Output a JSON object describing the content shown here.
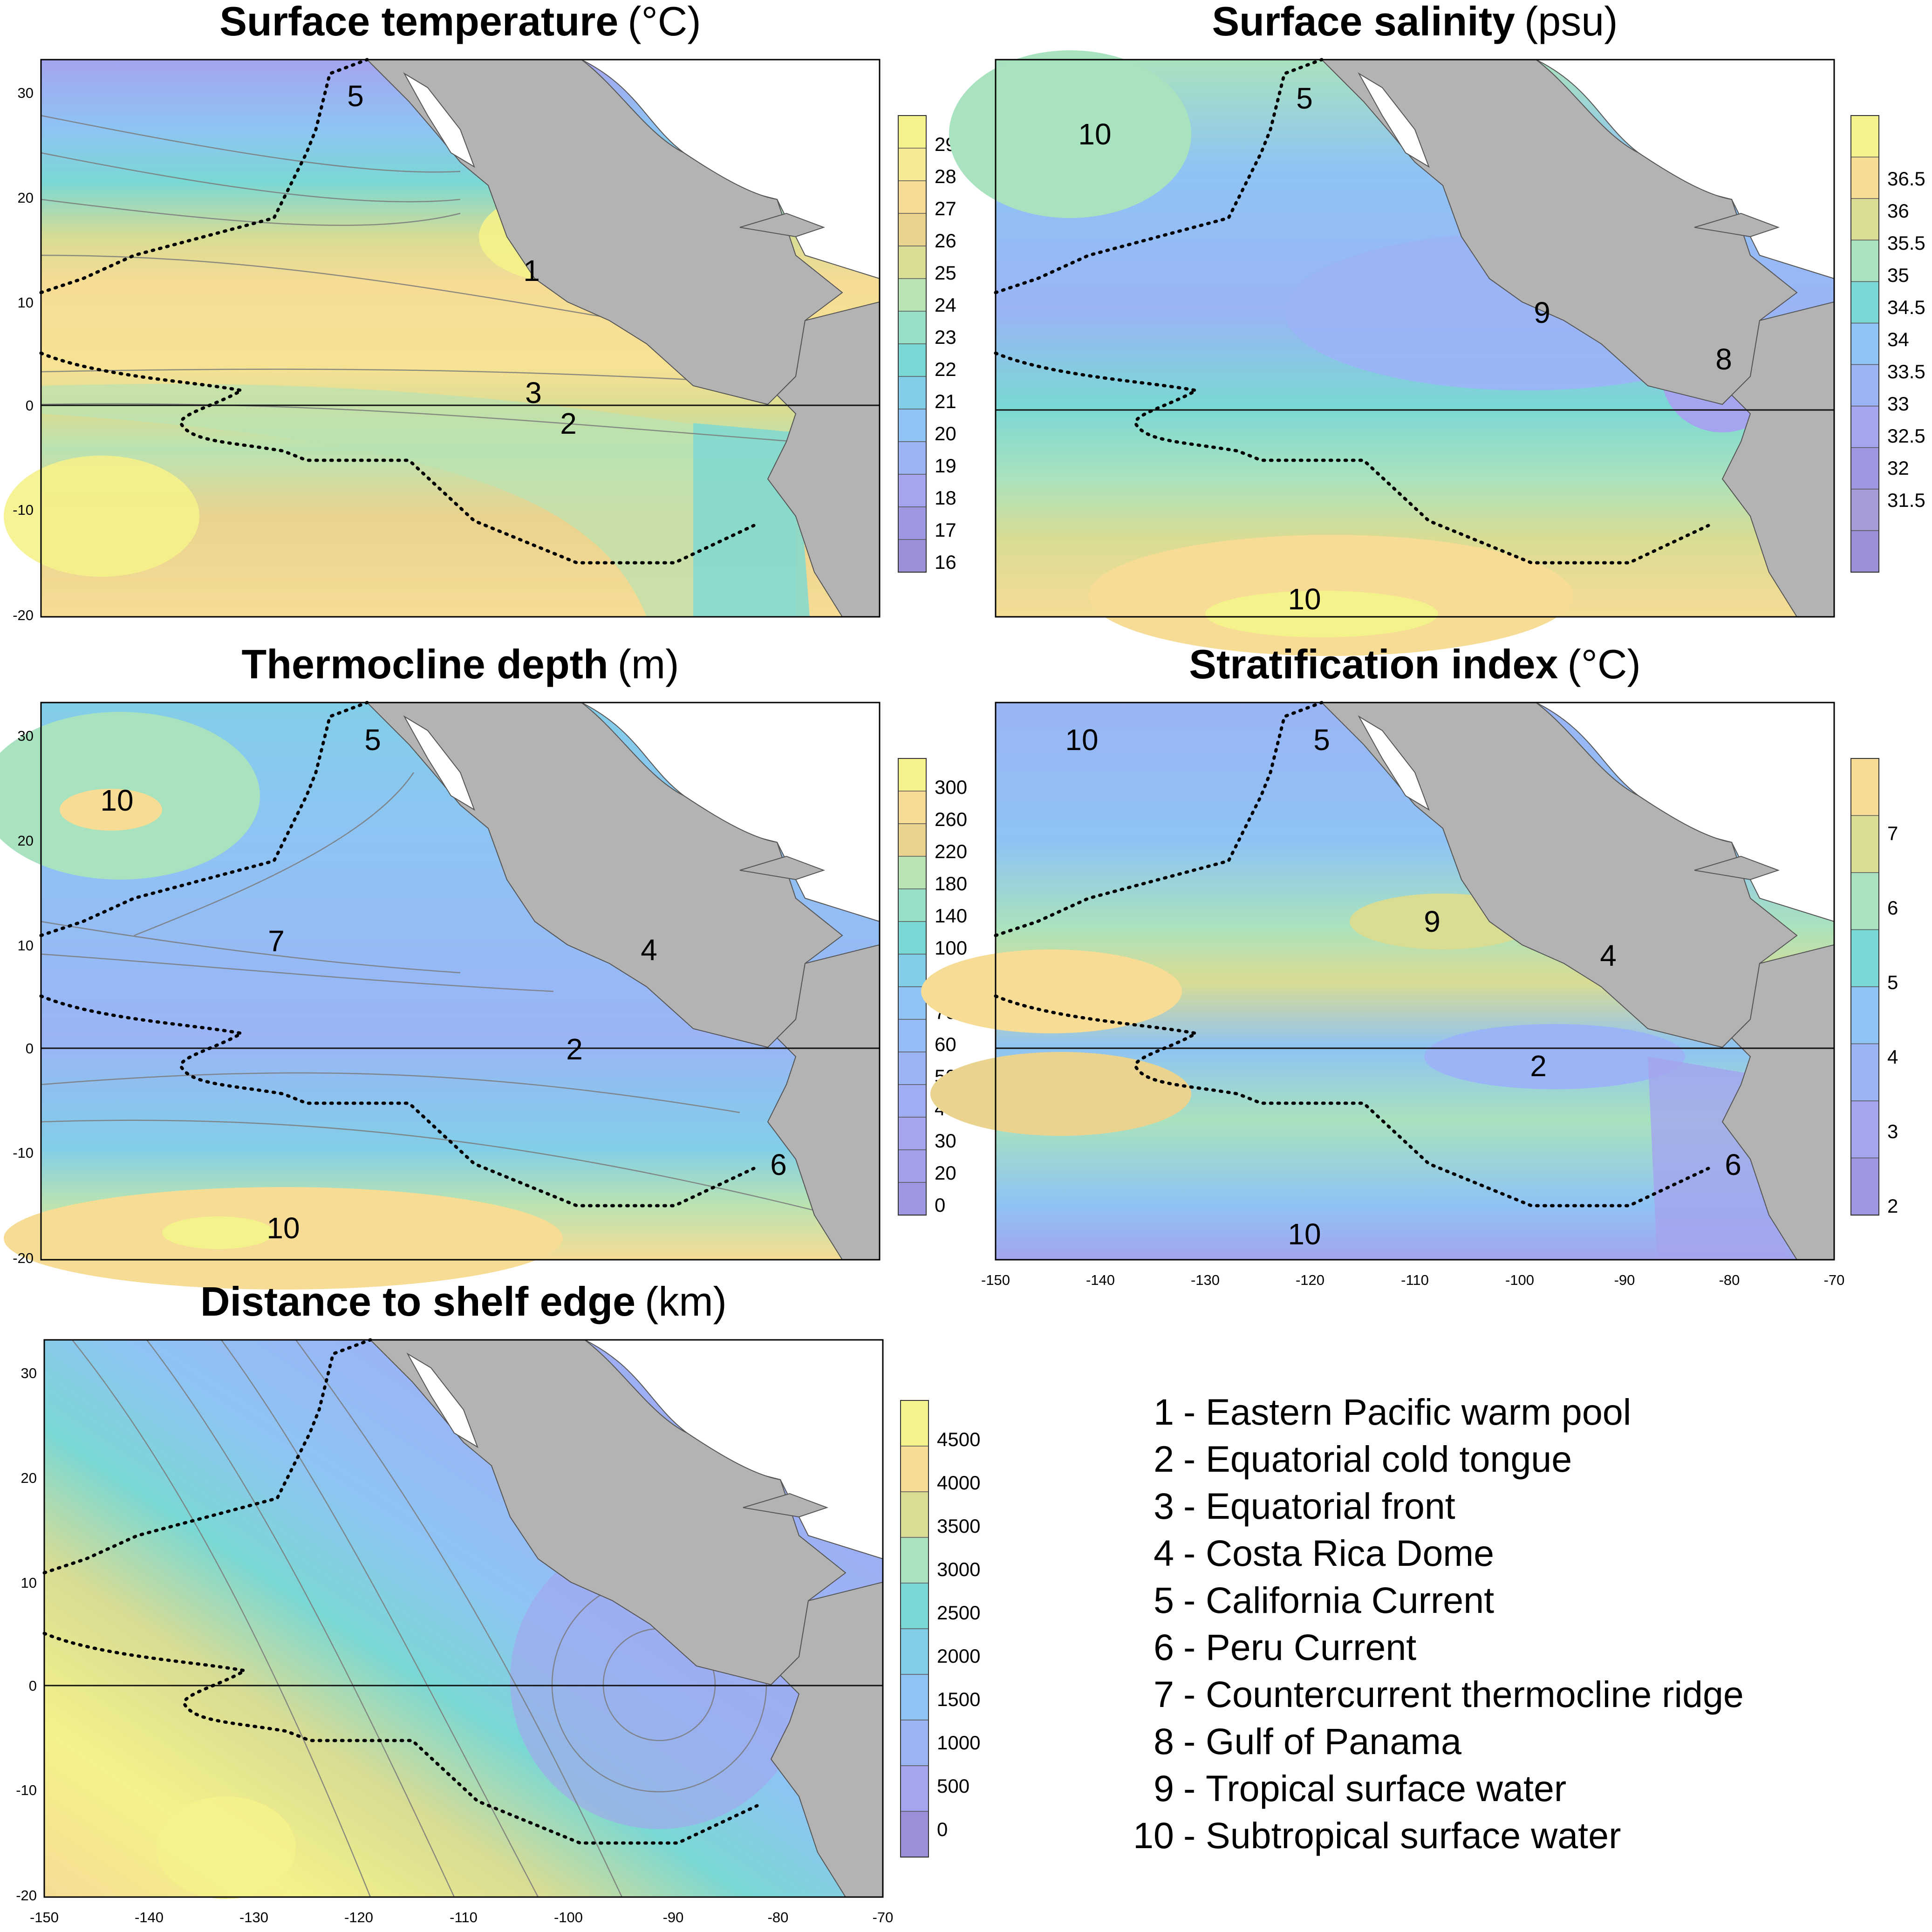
{
  "panels": [
    {
      "id": "sst",
      "title_bold": "Surface temperature",
      "title_unit": "(°C)",
      "colorbar_labels": [
        "29",
        "28",
        "27",
        "26",
        "25",
        "24",
        "23",
        "22",
        "21",
        "20",
        "19",
        "18",
        "17",
        "16"
      ],
      "colorbar_colors": [
        "#f4f28a",
        "#f7ea94",
        "#f6dc95",
        "#ead38e",
        "#d9dc93",
        "#b9e3b2",
        "#97e0c6",
        "#7ad8d4",
        "#82cee8",
        "#8fc3f4",
        "#9ab4f6",
        "#a4a4ef",
        "#9e98e3",
        "#9a90d8"
      ],
      "region_labels": [
        "5",
        "1",
        "3",
        "2"
      ],
      "show_x_ticks": false
    },
    {
      "id": "sss",
      "title_bold": "Surface salinity",
      "title_unit": "(psu)",
      "colorbar_labels": [
        "36.5",
        "36",
        "35.5",
        "35",
        "34.5",
        "34",
        "33.5",
        "33",
        "32.5",
        "32",
        "31.5"
      ],
      "colorbar_colors": [
        "#f4f28a",
        "#f6dc95",
        "#d9dc93",
        "#a9e2be",
        "#7ad8d4",
        "#8fc3f4",
        "#9ab4f6",
        "#a4a4ef",
        "#9e98e3",
        "#a59bd6",
        "#9a90d8"
      ],
      "region_labels": [
        "5",
        "10",
        "9",
        "8",
        "10"
      ],
      "show_x_ticks": false
    },
    {
      "id": "thermo",
      "title_bold": "Thermocline depth",
      "title_unit": "(m)",
      "colorbar_labels": [
        "300",
        "260",
        "220",
        "180",
        "140",
        "100",
        "80",
        "70",
        "60",
        "50",
        "40",
        "30",
        "20",
        "0"
      ],
      "colorbar_colors": [
        "#f4f28a",
        "#f6dc95",
        "#ead38e",
        "#b9e3b2",
        "#97e0c6",
        "#7ad8d4",
        "#82cee8",
        "#8fc3f4",
        "#94bcf6",
        "#9ab4f6",
        "#a0acf4",
        "#a4a4ef",
        "#a2a0ea",
        "#9e98e3"
      ],
      "region_labels": [
        "5",
        "10",
        "7",
        "4",
        "2",
        "6",
        "10"
      ],
      "show_x_ticks": false
    },
    {
      "id": "strat",
      "title_bold": "Stratification index",
      "title_unit": "(°C)",
      "colorbar_labels": [
        "7",
        "6",
        "5",
        "4",
        "3",
        "2"
      ],
      "colorbar_colors": [
        "#f6dc95",
        "#d9dc93",
        "#a9e2be",
        "#7ad8d4",
        "#8fc3f4",
        "#9ab4f6",
        "#a4a4ef",
        "#9e98e3"
      ],
      "region_labels": [
        "10",
        "5",
        "9",
        "4",
        "2",
        "6",
        "10"
      ],
      "show_x_ticks": true
    },
    {
      "id": "shelf",
      "title_bold": "Distance to shelf edge",
      "title_unit": "(km)",
      "colorbar_labels": [
        "4500",
        "4000",
        "3500",
        "3000",
        "2500",
        "2000",
        "1500",
        "1000",
        "500",
        "0"
      ],
      "colorbar_colors": [
        "#f4f28a",
        "#f6dc95",
        "#d9dc93",
        "#a9e2be",
        "#7ad8d4",
        "#82cee8",
        "#8fc3f4",
        "#9ab4f6",
        "#a4a4ef",
        "#9a90d8"
      ],
      "region_labels": [],
      "show_x_ticks": true
    }
  ],
  "y_ticks": [
    "30",
    "20",
    "10",
    "0",
    "-10",
    "-20"
  ],
  "x_ticks": [
    "-150",
    "-140",
    "-130",
    "-120",
    "-110",
    "-100",
    "-90",
    "-80",
    "-70"
  ],
  "legend": [
    {
      "num": "1",
      "text": "Eastern Pacific warm pool"
    },
    {
      "num": "2",
      "text": "Equatorial cold tongue"
    },
    {
      "num": "3",
      "text": "Equatorial front"
    },
    {
      "num": "4",
      "text": "Costa Rica Dome"
    },
    {
      "num": "5",
      "text": "California Current"
    },
    {
      "num": "6",
      "text": "Peru Current"
    },
    {
      "num": "7",
      "text": "Countercurrent thermocline ridge"
    },
    {
      "num": "8",
      "text": "Gulf of Panama"
    },
    {
      "num": "9",
      "text": "Tropical surface water"
    },
    {
      "num": "10",
      "text": "Subtropical surface water"
    }
  ],
  "land_color": "#b3b3b3",
  "map_extent": {
    "lon": [
      -150,
      -70
    ],
    "lat": [
      -20,
      33
    ]
  }
}
